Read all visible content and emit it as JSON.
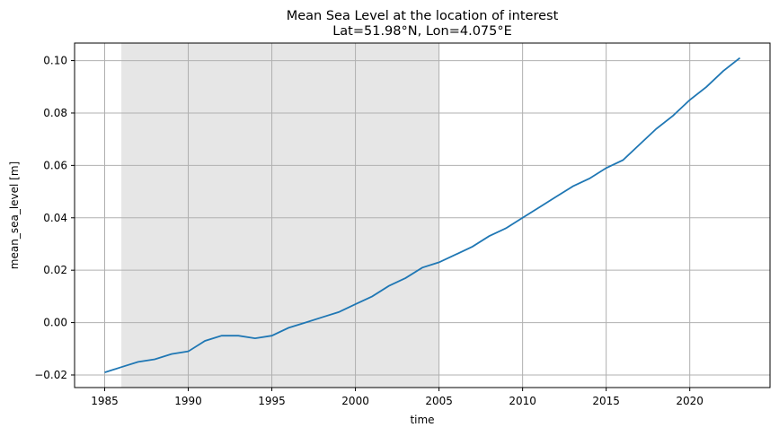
{
  "chart_data": {
    "type": "line",
    "title": "Mean Sea Level at the location of interest",
    "subtitle": "Lat=51.98°N, Lon=4.075°E",
    "xlabel": "time",
    "ylabel": "mean_sea_level [m]",
    "xlim": [
      1983.2,
      2024.8
    ],
    "ylim": [
      -0.0248,
      0.1067
    ],
    "xticks": [
      1985,
      1990,
      1995,
      2000,
      2005,
      2010,
      2015,
      2020
    ],
    "yticks": [
      -0.02,
      0.0,
      0.02,
      0.04,
      0.06,
      0.08,
      0.1
    ],
    "ytick_labels": [
      "−0.02",
      "0.00",
      "0.02",
      "0.04",
      "0.06",
      "0.08",
      "0.10"
    ],
    "grid": true,
    "shaded_span": [
      1986,
      2005
    ],
    "colors": {
      "line": "#1f77b4",
      "shade": "#e6e6e6",
      "grid": "#b0b0b0"
    },
    "x": [
      1985,
      1986,
      1987,
      1988,
      1989,
      1990,
      1991,
      1992,
      1993,
      1994,
      1995,
      1996,
      1997,
      1998,
      1999,
      2000,
      2001,
      2002,
      2003,
      2004,
      2005,
      2006,
      2007,
      2008,
      2009,
      2010,
      2011,
      2012,
      2013,
      2014,
      2015,
      2016,
      2017,
      2018,
      2019,
      2020,
      2021,
      2022,
      2023
    ],
    "y": [
      -0.019,
      -0.017,
      -0.015,
      -0.014,
      -0.012,
      -0.011,
      -0.007,
      -0.005,
      -0.005,
      -0.006,
      -0.005,
      -0.002,
      0.0,
      0.002,
      0.004,
      0.007,
      0.01,
      0.014,
      0.017,
      0.021,
      0.023,
      0.026,
      0.029,
      0.033,
      0.036,
      0.04,
      0.044,
      0.048,
      0.052,
      0.055,
      0.059,
      0.062,
      0.068,
      0.074,
      0.079,
      0.085,
      0.09,
      0.096,
      0.101
    ]
  }
}
